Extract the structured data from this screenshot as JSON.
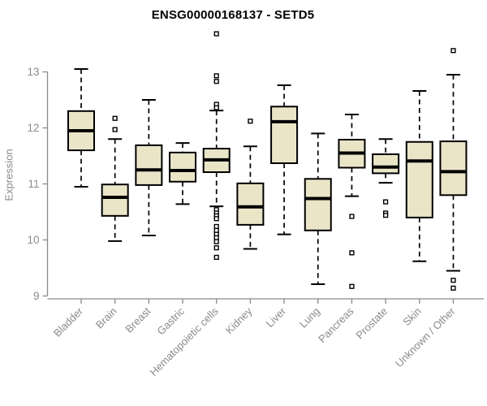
{
  "chart_data": {
    "type": "box",
    "title": "ENSG00000168137 - SETD5",
    "xlabel": "",
    "ylabel": "Expression",
    "ylim": [
      9,
      13
    ],
    "yticks": [
      9,
      10,
      11,
      12,
      13
    ],
    "grid": false,
    "legend": "none",
    "box_fill": "#ebe5c8",
    "box_stroke": "#000000",
    "median_color": "#000000",
    "whisker_color": "#000000",
    "outlier_fill": "#ffffff",
    "axis_color": "#8a8a8a",
    "categories": [
      "Bladder",
      "Brain",
      "Breast",
      "Gastric",
      "Hematopoietic cells",
      "Kidney",
      "Liver",
      "Lung",
      "Pancreas",
      "Prostate",
      "Skin",
      "Unknown / Other"
    ],
    "series": [
      {
        "name": "Bladder",
        "low": 10.95,
        "q1": 11.6,
        "median": 11.95,
        "q3": 12.3,
        "high": 13.05,
        "outliers": []
      },
      {
        "name": "Brain",
        "low": 9.98,
        "q1": 10.43,
        "median": 10.76,
        "q3": 10.99,
        "high": 11.8,
        "outliers": [
          12.17,
          11.97
        ]
      },
      {
        "name": "Breast",
        "low": 10.08,
        "q1": 10.98,
        "median": 11.25,
        "q3": 11.69,
        "high": 12.5,
        "outliers": []
      },
      {
        "name": "Gastric",
        "low": 10.64,
        "q1": 11.04,
        "median": 11.24,
        "q3": 11.56,
        "high": 11.73,
        "outliers": []
      },
      {
        "name": "Hematopoietic cells",
        "low": 10.6,
        "q1": 11.21,
        "median": 11.43,
        "q3": 11.63,
        "high": 12.31,
        "outliers": [
          13.68,
          12.93,
          12.83,
          12.42,
          12.36,
          10.54,
          10.48,
          10.43,
          10.38,
          10.24,
          10.17,
          10.1,
          10.04,
          9.97,
          9.86,
          9.69
        ]
      },
      {
        "name": "Kidney",
        "low": 9.84,
        "q1": 10.27,
        "median": 10.59,
        "q3": 11.01,
        "high": 11.67,
        "outliers": [
          12.12
        ]
      },
      {
        "name": "Liver",
        "low": 10.1,
        "q1": 11.37,
        "median": 12.11,
        "q3": 12.38,
        "high": 12.76,
        "outliers": []
      },
      {
        "name": "Lung",
        "low": 9.21,
        "q1": 10.17,
        "median": 10.74,
        "q3": 11.09,
        "high": 11.9,
        "outliers": []
      },
      {
        "name": "Pancreas",
        "low": 10.78,
        "q1": 11.29,
        "median": 11.55,
        "q3": 11.79,
        "high": 12.24,
        "outliers": [
          10.42,
          9.77,
          9.17
        ]
      },
      {
        "name": "Prostate",
        "low": 11.02,
        "q1": 11.19,
        "median": 11.3,
        "q3": 11.53,
        "high": 11.8,
        "outliers": [
          10.68,
          10.48,
          10.44
        ]
      },
      {
        "name": "Skin",
        "low": 9.62,
        "q1": 10.4,
        "median": 11.41,
        "q3": 11.75,
        "high": 12.66,
        "outliers": []
      },
      {
        "name": "Unknown / Other",
        "low": 9.45,
        "q1": 10.8,
        "median": 11.22,
        "q3": 11.76,
        "high": 12.95,
        "outliers": [
          13.38,
          9.28,
          9.14
        ]
      }
    ]
  }
}
